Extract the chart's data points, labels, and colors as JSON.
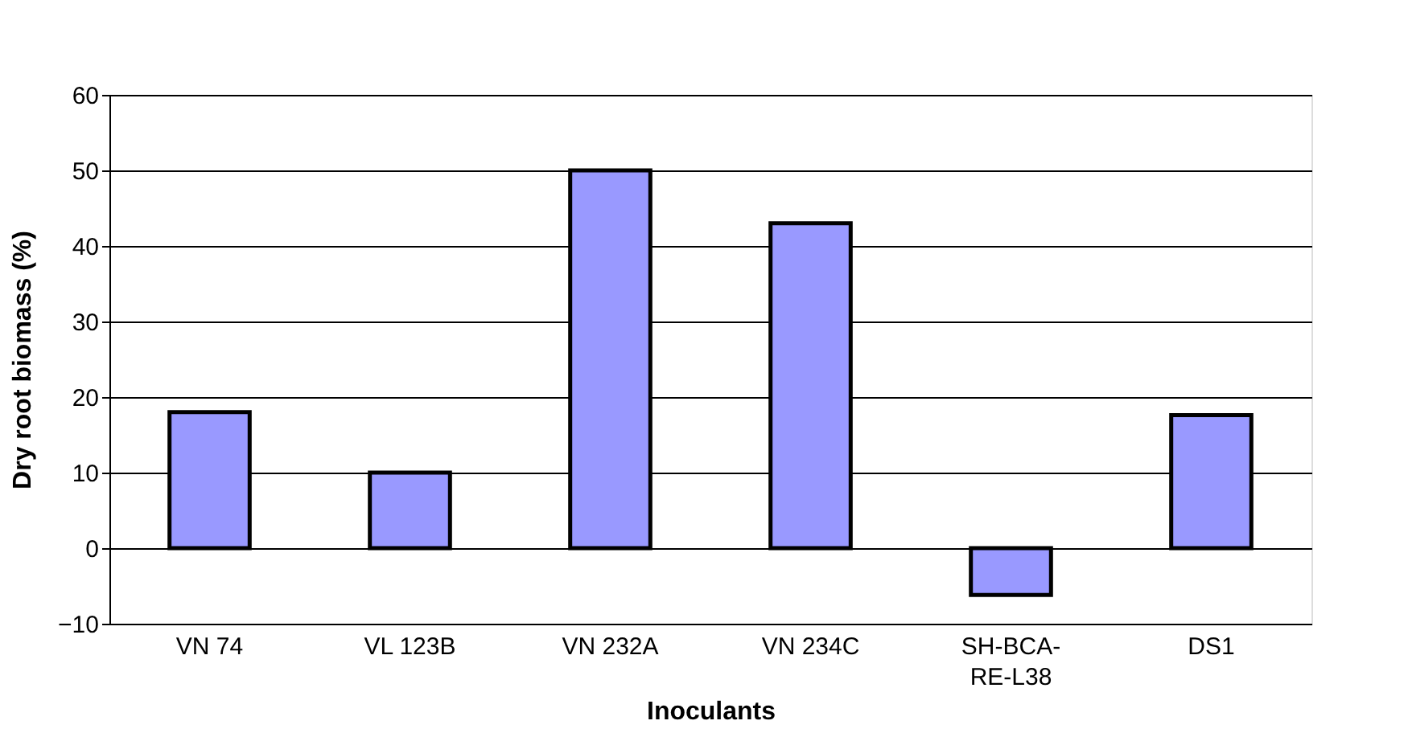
{
  "chart_data": {
    "type": "bar",
    "xlabel": "Inoculants",
    "ylabel": "Dry root biomass (%)",
    "categories": [
      "VN 74",
      "VL 123B",
      "VN 232A",
      "VN 234C",
      "SH-BCA-RE-L38",
      "DS1"
    ],
    "values": [
      18,
      10,
      50,
      43,
      -6.2,
      17.6
    ],
    "color": "#9999ff",
    "ylim": [
      -10,
      60
    ],
    "yticks": [
      -10,
      0,
      10,
      20,
      30,
      40,
      50,
      60
    ],
    "grid": "y"
  }
}
